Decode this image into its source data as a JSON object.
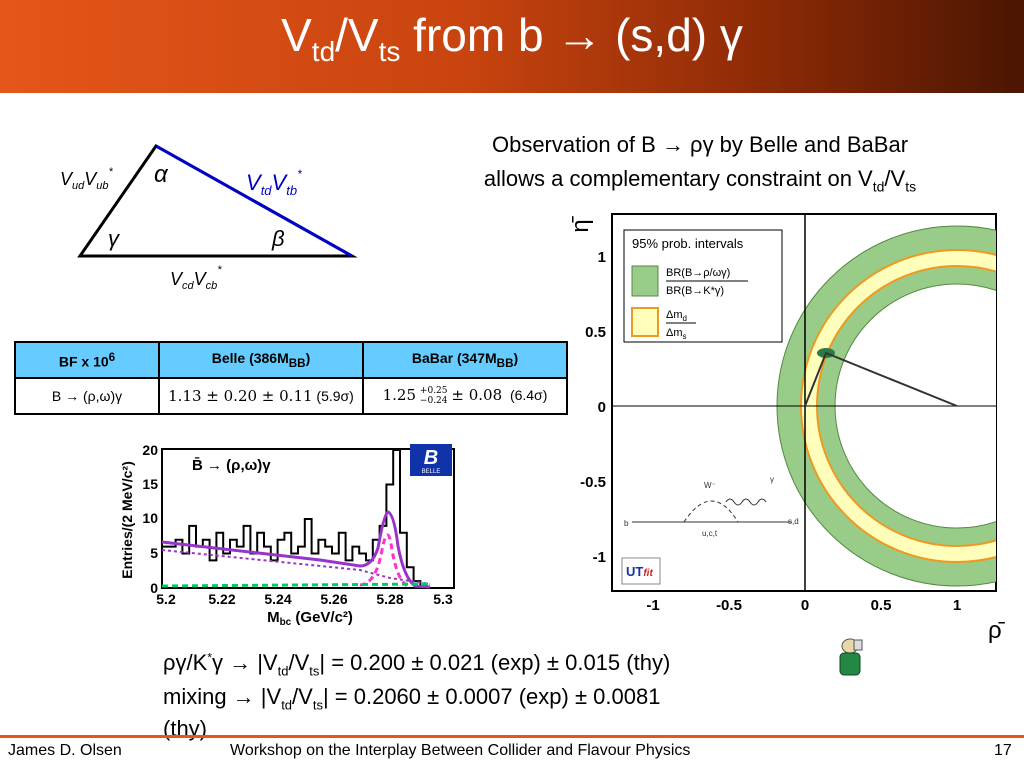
{
  "slide": {
    "title_main": "V",
    "title_sub1": "td",
    "title_mid": "/V",
    "title_sub2": "ts",
    "title_rest": " from b → (s,d) γ"
  },
  "triangle": {
    "left_side": "V_ud V*_ub",
    "right_side": "V_td V*_tb",
    "bottom_side": "V_cd V*_cb",
    "angle_top": "α",
    "angle_left": "γ",
    "angle_right": "β"
  },
  "observation": {
    "line1": "Observation of B → ργ by Belle and BaBar",
    "line2_prefix": "allows a complementary constraint on V",
    "line2_sub1": "td",
    "line2_mid": "/V",
    "line2_sub2": "ts"
  },
  "bf_table": {
    "headers": [
      "BF x 10⁶",
      "Belle (386M_BB)",
      "BaBar (347M_BB)"
    ],
    "row_label": "B → (ρ,ω)γ",
    "belle_value": "1.13 ± 0.20 ± 0.11",
    "belle_sig": "(5.9σ)",
    "babar_value": "1.25 +0.25 −0.24 ± 0.08",
    "babar_sig": "(6.4σ)"
  },
  "belle_plot": {
    "ylabel": "Entries/(2 MeV/c²)",
    "xlabel": "M_bc (GeV/c²)",
    "label": "B̄ → (ρ,ω)γ",
    "logo_text": "BELLE",
    "yticks": [
      "0",
      "5",
      "10",
      "15",
      "20"
    ],
    "xticks": [
      "5.2",
      "5.22",
      "5.24",
      "5.26",
      "5.28",
      "5.3"
    ],
    "colors": {
      "signal": "#9933cc",
      "dashed": "#ff33cc",
      "green": "#00cc66"
    }
  },
  "ut_plot": {
    "legend_title": "95% prob. intervals",
    "legend_bf": "BR(B→ρ/ωγ) / BR(B→K*γ)",
    "legend_dm": "Δm_d / Δm_s",
    "ylabel": "η̄",
    "xlabel": "ρ̄",
    "yticks": [
      "-1",
      "-0.5",
      "0",
      "0.5",
      "1"
    ],
    "xticks": [
      "-1",
      "-0.5",
      "0",
      "0.5",
      "1"
    ],
    "logo": "UTfit",
    "feynman_labels": [
      "W⁻",
      "γ",
      "b",
      "s,d",
      "u,c,t"
    ],
    "colors": {
      "green": "#99cc88",
      "yellow": "#ffffbb",
      "orange": "#ee9922"
    }
  },
  "results": {
    "line1": "ργ/K*γ → |V_td/V_ts| = 0.200 ± 0.021 (exp) ± 0.015 (thy)",
    "line2": "mixing → |V_td/V_ts| = 0.2060 ± 0.0007 (exp) ± 0.0081",
    "line3": "(thy)"
  },
  "footer": {
    "author": "James D. Olsen",
    "workshop": "Workshop on the Interplay Between Collider and Flavour Physics",
    "page": "17"
  }
}
